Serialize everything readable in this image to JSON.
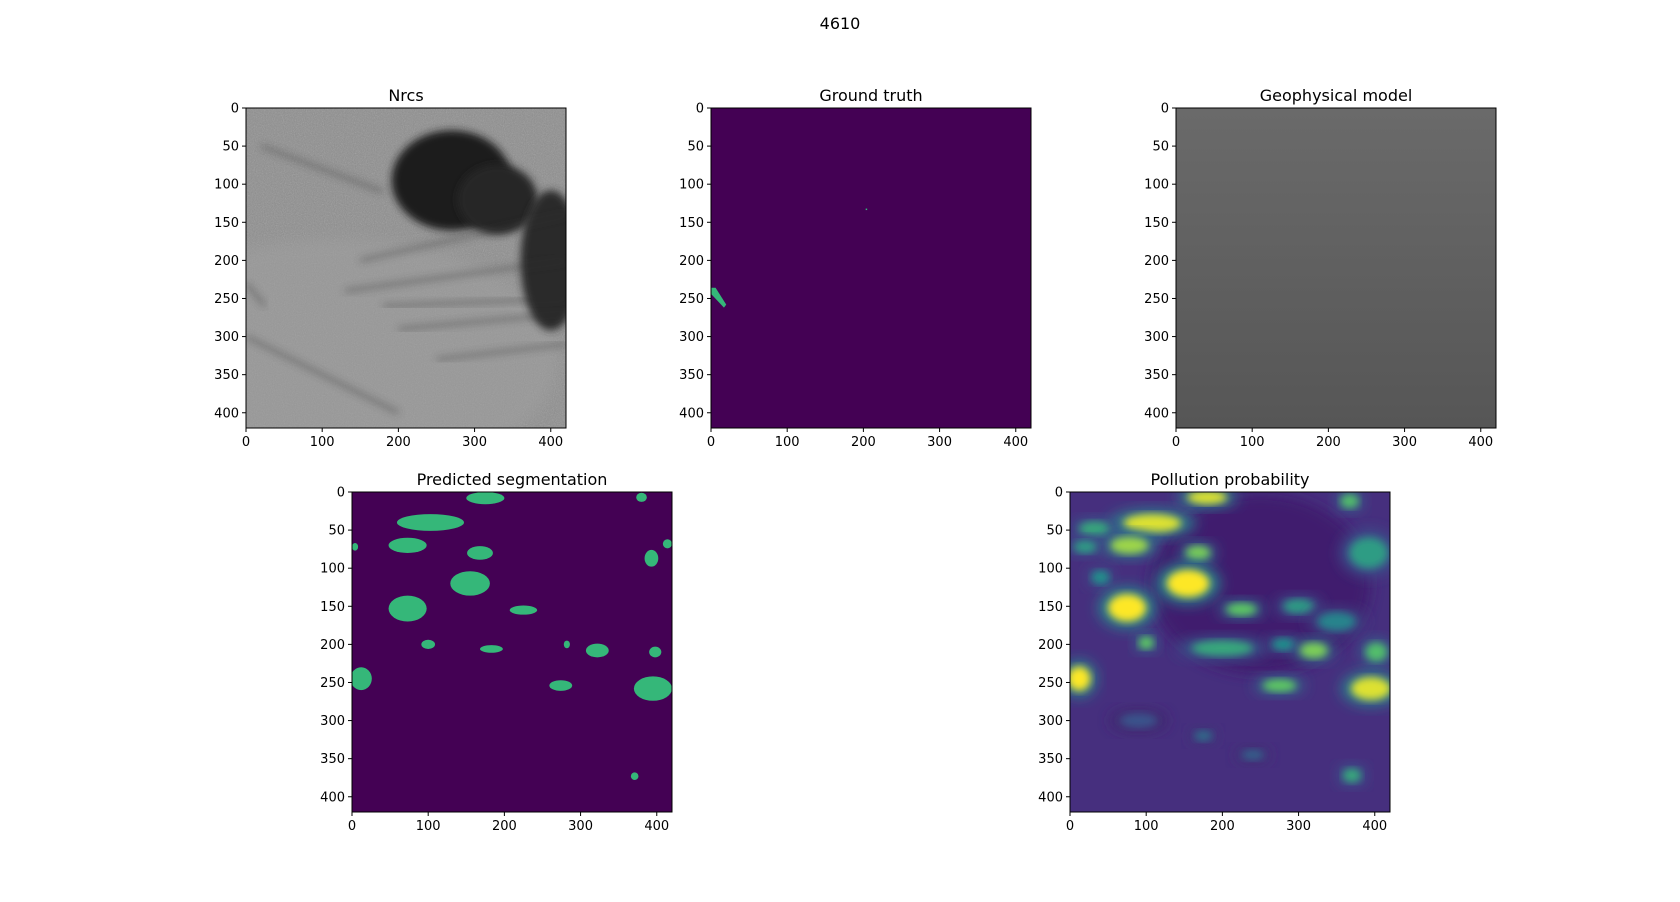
{
  "figure": {
    "title": "4610"
  },
  "colors": {
    "viridis_bg": "#440154",
    "viridis_mask": "#35b779",
    "viridis_high": "#fde725",
    "gray_nrcs": "#8e8e8e",
    "gray_model": "#626262"
  },
  "chart_data": [
    {
      "type": "heatmap",
      "title": "Nrcs",
      "colormap": "gray",
      "xlim": [
        0,
        420
      ],
      "ylim": [
        420,
        0
      ],
      "xticks": [
        "0",
        "100",
        "200",
        "300",
        "400"
      ],
      "yticks": [
        "0",
        "50",
        "100",
        "150",
        "200",
        "250",
        "300",
        "350",
        "400"
      ]
    },
    {
      "type": "heatmap",
      "title": "Ground truth",
      "colormap": "viridis",
      "xlim": [
        0,
        420
      ],
      "ylim": [
        420,
        0
      ],
      "xticks": [
        "0",
        "100",
        "200",
        "300",
        "400"
      ],
      "yticks": [
        "0",
        "50",
        "100",
        "150",
        "200",
        "250",
        "300",
        "350",
        "400"
      ],
      "regions": [
        {
          "x": [
            0,
            20
          ],
          "y": [
            236,
            262
          ]
        },
        {
          "x": [
            203,
            203
          ],
          "y": [
            132,
            132
          ]
        }
      ]
    },
    {
      "type": "heatmap",
      "title": "Geophysical model",
      "colormap": "gray",
      "xlim": [
        0,
        420
      ],
      "ylim": [
        420,
        0
      ],
      "xticks": [
        "0",
        "100",
        "200",
        "300",
        "400"
      ],
      "yticks": [
        "0",
        "50",
        "100",
        "150",
        "200",
        "250",
        "300",
        "350",
        "400"
      ]
    },
    {
      "type": "heatmap",
      "title": "Predicted segmentation",
      "colormap": "viridis",
      "xlim": [
        0,
        420
      ],
      "ylim": [
        420,
        0
      ],
      "xticks": [
        "0",
        "100",
        "200",
        "300",
        "400"
      ],
      "yticks": [
        "0",
        "50",
        "100",
        "150",
        "200",
        "250",
        "300",
        "350",
        "400"
      ],
      "blobs": [
        {
          "cx": 175,
          "cy": 8,
          "rx": 25,
          "ry": 8
        },
        {
          "cx": 380,
          "cy": 7,
          "rx": 7,
          "ry": 6
        },
        {
          "cx": 103,
          "cy": 40,
          "rx": 44,
          "ry": 11
        },
        {
          "cx": 73,
          "cy": 70,
          "rx": 25,
          "ry": 10
        },
        {
          "cx": 4,
          "cy": 72,
          "rx": 4,
          "ry": 5
        },
        {
          "cx": 168,
          "cy": 80,
          "rx": 17,
          "ry": 9
        },
        {
          "cx": 393,
          "cy": 87,
          "rx": 9,
          "ry": 11
        },
        {
          "cx": 414,
          "cy": 68,
          "rx": 6,
          "ry": 6
        },
        {
          "cx": 155,
          "cy": 120,
          "rx": 26,
          "ry": 16
        },
        {
          "cx": 73,
          "cy": 153,
          "rx": 25,
          "ry": 17
        },
        {
          "cx": 225,
          "cy": 155,
          "rx": 18,
          "ry": 6
        },
        {
          "cx": 100,
          "cy": 200,
          "rx": 9,
          "ry": 6
        },
        {
          "cx": 183,
          "cy": 206,
          "rx": 15,
          "ry": 5
        },
        {
          "cx": 282,
          "cy": 200,
          "rx": 4,
          "ry": 5
        },
        {
          "cx": 322,
          "cy": 208,
          "rx": 15,
          "ry": 9
        },
        {
          "cx": 398,
          "cy": 210,
          "rx": 8,
          "ry": 7
        },
        {
          "cx": 12,
          "cy": 245,
          "rx": 14,
          "ry": 15
        },
        {
          "cx": 274,
          "cy": 254,
          "rx": 15,
          "ry": 7
        },
        {
          "cx": 395,
          "cy": 258,
          "rx": 25,
          "ry": 16
        },
        {
          "cx": 371,
          "cy": 373,
          "rx": 5,
          "ry": 5
        }
      ]
    },
    {
      "type": "heatmap",
      "title": "Pollution probability",
      "colormap": "viridis",
      "xlim": [
        0,
        420
      ],
      "ylim": [
        420,
        0
      ],
      "xticks": [
        "0",
        "100",
        "200",
        "300",
        "400"
      ],
      "yticks": [
        "0",
        "50",
        "100",
        "150",
        "200",
        "250",
        "300",
        "350",
        "400"
      ],
      "hotspots": [
        {
          "cx": 180,
          "cy": 7,
          "rx": 26,
          "ry": 9,
          "level": 0.95
        },
        {
          "cx": 367,
          "cy": 12,
          "rx": 12,
          "ry": 9,
          "level": 0.7
        },
        {
          "cx": 108,
          "cy": 41,
          "rx": 38,
          "ry": 12,
          "level": 0.95
        },
        {
          "cx": 32,
          "cy": 48,
          "rx": 20,
          "ry": 9,
          "level": 0.6
        },
        {
          "cx": 78,
          "cy": 70,
          "rx": 25,
          "ry": 11,
          "level": 0.85
        },
        {
          "cx": 20,
          "cy": 72,
          "rx": 15,
          "ry": 8,
          "level": 0.55
        },
        {
          "cx": 168,
          "cy": 80,
          "rx": 16,
          "ry": 9,
          "level": 0.8
        },
        {
          "cx": 392,
          "cy": 80,
          "rx": 25,
          "ry": 20,
          "level": 0.55
        },
        {
          "cx": 155,
          "cy": 120,
          "rx": 28,
          "ry": 18,
          "level": 1.0
        },
        {
          "cx": 40,
          "cy": 112,
          "rx": 12,
          "ry": 9,
          "level": 0.5
        },
        {
          "cx": 75,
          "cy": 152,
          "rx": 25,
          "ry": 18,
          "level": 1.0
        },
        {
          "cx": 225,
          "cy": 154,
          "rx": 20,
          "ry": 8,
          "level": 0.75
        },
        {
          "cx": 300,
          "cy": 150,
          "rx": 20,
          "ry": 9,
          "level": 0.55
        },
        {
          "cx": 350,
          "cy": 170,
          "rx": 25,
          "ry": 12,
          "level": 0.45
        },
        {
          "cx": 100,
          "cy": 198,
          "rx": 10,
          "ry": 8,
          "level": 0.75
        },
        {
          "cx": 200,
          "cy": 205,
          "rx": 40,
          "ry": 10,
          "level": 0.6
        },
        {
          "cx": 280,
          "cy": 200,
          "rx": 15,
          "ry": 8,
          "level": 0.5
        },
        {
          "cx": 320,
          "cy": 208,
          "rx": 18,
          "ry": 10,
          "level": 0.8
        },
        {
          "cx": 402,
          "cy": 210,
          "rx": 14,
          "ry": 12,
          "level": 0.7
        },
        {
          "cx": 12,
          "cy": 245,
          "rx": 15,
          "ry": 16,
          "level": 1.0
        },
        {
          "cx": 275,
          "cy": 254,
          "rx": 22,
          "ry": 8,
          "level": 0.75
        },
        {
          "cx": 395,
          "cy": 258,
          "rx": 26,
          "ry": 15,
          "level": 0.95
        },
        {
          "cx": 90,
          "cy": 300,
          "rx": 25,
          "ry": 10,
          "level": 0.25
        },
        {
          "cx": 175,
          "cy": 320,
          "rx": 12,
          "ry": 7,
          "level": 0.35
        },
        {
          "cx": 240,
          "cy": 345,
          "rx": 15,
          "ry": 7,
          "level": 0.3
        },
        {
          "cx": 370,
          "cy": 372,
          "rx": 12,
          "ry": 9,
          "level": 0.6
        }
      ]
    }
  ]
}
